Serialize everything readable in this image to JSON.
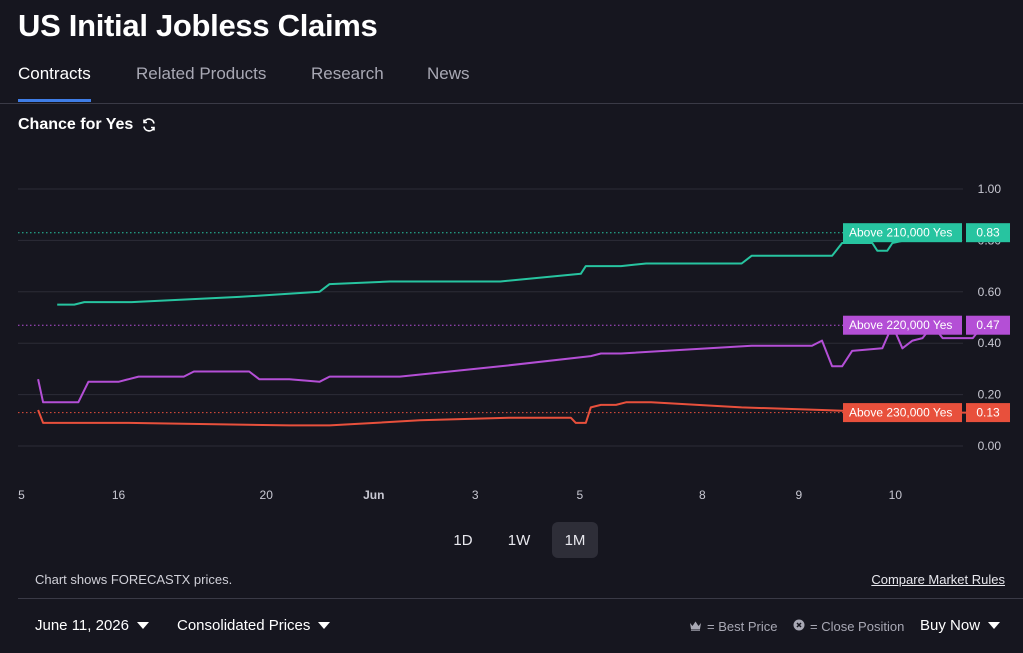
{
  "page": {
    "title": "US Initial Jobless Claims"
  },
  "tabs": [
    {
      "label": "Contracts",
      "active": true
    },
    {
      "label": "Related Products",
      "active": false
    },
    {
      "label": "Research",
      "active": false
    },
    {
      "label": "News",
      "active": false
    }
  ],
  "chart_header": {
    "label": "Chance for Yes",
    "icon": "refresh-icon"
  },
  "chart_data": {
    "type": "line",
    "ylim": [
      0,
      1
    ],
    "y_ticks": [
      "1.00",
      "0.80",
      "0.60",
      "0.40",
      "0.20",
      "0.00"
    ],
    "x_ticks": [
      "5",
      "16",
      "20",
      "Jun",
      "3",
      "5",
      "8",
      "9",
      "10"
    ],
    "grid": true,
    "series": [
      {
        "name": "Above 210,000 Yes",
        "color": "#27c4a0",
        "current": "0.83",
        "points": [
          [
            0.039,
            0.55
          ],
          [
            0.056,
            0.55
          ],
          [
            0.066,
            0.56
          ],
          [
            0.113,
            0.56
          ],
          [
            0.22,
            0.58
          ],
          [
            0.3,
            0.6
          ],
          [
            0.31,
            0.63
          ],
          [
            0.37,
            0.64
          ],
          [
            0.48,
            0.64
          ],
          [
            0.56,
            0.67
          ],
          [
            0.565,
            0.7
          ],
          [
            0.6,
            0.7
          ],
          [
            0.625,
            0.71
          ],
          [
            0.72,
            0.71
          ],
          [
            0.73,
            0.74
          ],
          [
            0.81,
            0.74
          ],
          [
            0.82,
            0.79
          ],
          [
            0.85,
            0.79
          ],
          [
            0.855,
            0.76
          ],
          [
            0.865,
            0.76
          ],
          [
            0.87,
            0.79
          ],
          [
            0.882,
            0.8
          ],
          [
            0.895,
            0.82
          ],
          [
            0.91,
            0.83
          ]
        ]
      },
      {
        "name": "Above 220,000 Yes",
        "color": "#b44fd6",
        "current": "0.47",
        "points": [
          [
            0.02,
            0.26
          ],
          [
            0.025,
            0.17
          ],
          [
            0.06,
            0.17
          ],
          [
            0.07,
            0.25
          ],
          [
            0.1,
            0.25
          ],
          [
            0.12,
            0.27
          ],
          [
            0.165,
            0.27
          ],
          [
            0.175,
            0.29
          ],
          [
            0.23,
            0.29
          ],
          [
            0.24,
            0.26
          ],
          [
            0.27,
            0.26
          ],
          [
            0.3,
            0.25
          ],
          [
            0.31,
            0.27
          ],
          [
            0.38,
            0.27
          ],
          [
            0.48,
            0.31
          ],
          [
            0.57,
            0.35
          ],
          [
            0.58,
            0.36
          ],
          [
            0.6,
            0.36
          ],
          [
            0.73,
            0.39
          ],
          [
            0.79,
            0.39
          ],
          [
            0.8,
            0.41
          ],
          [
            0.81,
            0.31
          ],
          [
            0.82,
            0.31
          ],
          [
            0.83,
            0.37
          ],
          [
            0.86,
            0.38
          ],
          [
            0.87,
            0.47
          ],
          [
            0.88,
            0.38
          ],
          [
            0.89,
            0.41
          ],
          [
            0.9,
            0.42
          ],
          [
            0.91,
            0.47
          ],
          [
            0.92,
            0.42
          ],
          [
            0.95,
            0.42
          ],
          [
            0.96,
            0.47
          ]
        ]
      },
      {
        "name": "Above 230,000 Yes",
        "color": "#e8503c",
        "current": "0.13",
        "points": [
          [
            0.02,
            0.14
          ],
          [
            0.025,
            0.09
          ],
          [
            0.11,
            0.09
          ],
          [
            0.27,
            0.08
          ],
          [
            0.31,
            0.08
          ],
          [
            0.4,
            0.1
          ],
          [
            0.49,
            0.11
          ],
          [
            0.55,
            0.11
          ],
          [
            0.555,
            0.09
          ],
          [
            0.565,
            0.09
          ],
          [
            0.57,
            0.15
          ],
          [
            0.58,
            0.16
          ],
          [
            0.595,
            0.16
          ],
          [
            0.605,
            0.17
          ],
          [
            0.63,
            0.17
          ],
          [
            0.72,
            0.15
          ],
          [
            0.8,
            0.14
          ],
          [
            0.87,
            0.13
          ],
          [
            0.96,
            0.13
          ]
        ]
      }
    ]
  },
  "ranges": [
    {
      "label": "1D",
      "active": false
    },
    {
      "label": "1W",
      "active": false
    },
    {
      "label": "1M",
      "active": true
    }
  ],
  "notes": {
    "prices_note": "Chart shows FORECASTX prices.",
    "compare_link": "Compare Market Rules"
  },
  "footer": {
    "date": "June 11, 2026",
    "price_mode": "Consolidated Prices",
    "best_price": "= Best Price",
    "close_position": "= Close Position",
    "buy": "Buy Now"
  }
}
